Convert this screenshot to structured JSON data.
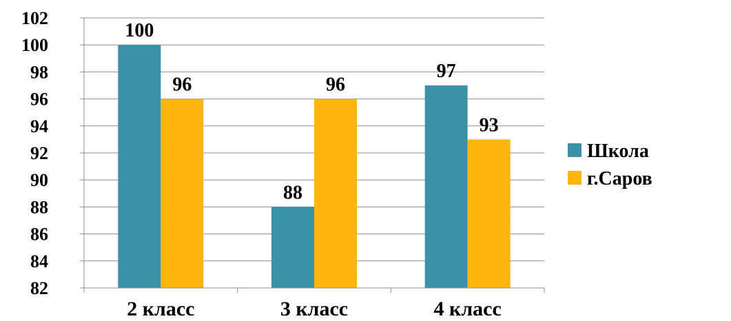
{
  "chart_data": {
    "type": "bar",
    "title": "",
    "xlabel": "",
    "ylabel": "",
    "categories": [
      "2 класс",
      "3 класс",
      "4 класс"
    ],
    "series": [
      {
        "name": "Школа",
        "values": [
          100,
          88,
          97
        ],
        "color": "#3b92a8"
      },
      {
        "name": "г.Саров",
        "values": [
          96,
          96,
          93
        ],
        "color": "#fdb60d"
      }
    ],
    "ylim": [
      82,
      102
    ],
    "yticks": [
      82,
      84,
      86,
      88,
      90,
      92,
      94,
      96,
      98,
      100,
      102
    ],
    "grid": true,
    "legend": "right",
    "data_labels": true
  }
}
